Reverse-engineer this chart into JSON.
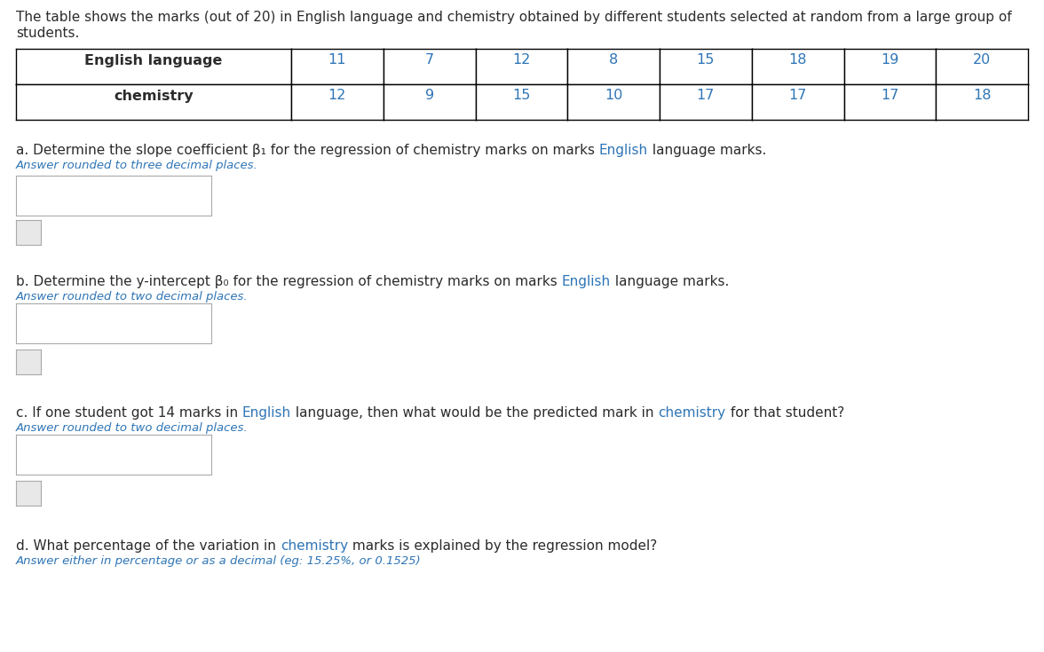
{
  "intro_line1": "The table shows the marks (out of 20) in English language and chemistry obtained by different students selected at random from a large group of",
  "intro_line2": "students.",
  "table_headers": [
    "English language",
    "11",
    "7",
    "12",
    "8",
    "15",
    "18",
    "19",
    "20"
  ],
  "table_row2": [
    "chemistry",
    "12",
    "9",
    "15",
    "10",
    "17",
    "17",
    "17",
    "18"
  ],
  "q_a_parts": [
    [
      "a. Determine the slope coefficient β₁ for the regression of chemistry marks on marks ",
      "black"
    ],
    [
      "English",
      "blue"
    ],
    [
      " language marks.",
      "black"
    ]
  ],
  "q_a_sub": "Answer rounded to three decimal places.",
  "q_b_parts": [
    [
      "b. Determine the y-intercept β₀ for the regression of chemistry marks on marks ",
      "black"
    ],
    [
      "English",
      "blue"
    ],
    [
      " language marks.",
      "black"
    ]
  ],
  "q_b_sub": "Answer rounded to two decimal places.",
  "q_c_parts": [
    [
      "c. If one student got 14 marks in ",
      "black"
    ],
    [
      "English",
      "blue"
    ],
    [
      " language, then what would be the predicted mark in ",
      "black"
    ],
    [
      "chemistry",
      "blue"
    ],
    [
      " for that student?",
      "black"
    ]
  ],
  "q_c_sub": "Answer rounded to two decimal places.",
  "q_d_parts": [
    [
      "d. What percentage of the variation in ",
      "black"
    ],
    [
      "chemistry",
      "blue"
    ],
    [
      " marks is explained by the regression model?",
      "black"
    ]
  ],
  "q_d_sub": "Answer either in percentage or as a decimal (eg: 15.25%, or 0.1525)",
  "bg_color": "#ffffff",
  "text_color": "#2b2b2b",
  "blue_color": "#2e75b6",
  "sub_color": "#2e75b6",
  "table_number_color": "#2e75b6",
  "font_size_intro": 11.0,
  "font_size_table_header": 11.5,
  "font_size_table_num": 11.5,
  "font_size_question": 11.0,
  "font_size_sub": 9.5
}
